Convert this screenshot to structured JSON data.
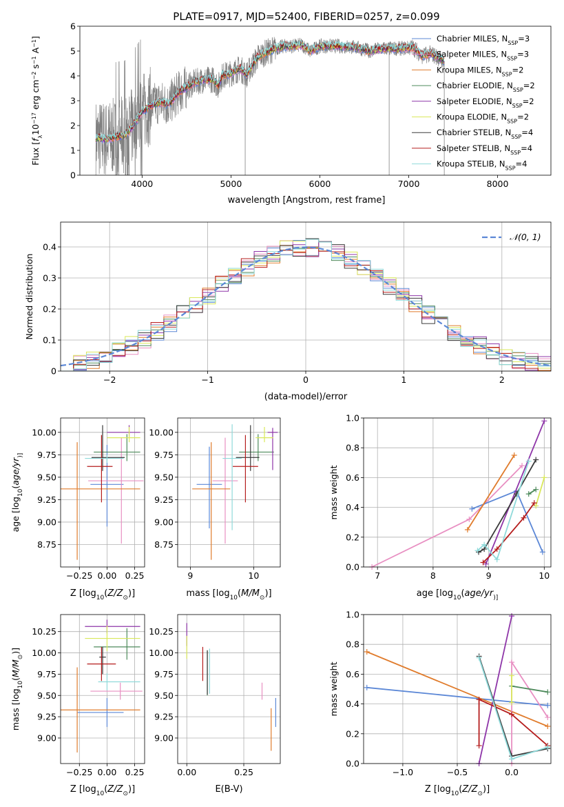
{
  "chart_data": [
    {
      "type": "line",
      "title": "PLATE=0917, MJD=52400, FIBERID=0257, z=0.099",
      "xlabel": "wavelength [Angstrom, rest frame]",
      "ylabel_parts": [
        "Flux [",
        "f",
        "λ",
        "10",
        "−17",
        " erg cm",
        "−2",
        " s",
        "−1",
        " A",
        "−1",
        "]"
      ],
      "xlim": [
        3300,
        8600
      ],
      "ylim": [
        0,
        6
      ],
      "xticks": [
        4000,
        5000,
        6000,
        7000,
        8000
      ],
      "yticks": [
        0,
        1,
        2,
        3,
        4,
        5,
        6
      ],
      "legend": "top-right",
      "data_color": "#808080",
      "models": [
        {
          "label": "Chabrier MILES, N",
          "sub": "SSP",
          "suffix": "=3",
          "color": "#5b87d6"
        },
        {
          "label": "Salpeter MILES, N",
          "sub": "SSP",
          "suffix": "=3",
          "color": "#e88fc2"
        },
        {
          "label": "Kroupa MILES, N",
          "sub": "SSP",
          "suffix": "=2",
          "color": "#e07b2b"
        },
        {
          "label": "Chabrier ELODIE, N",
          "sub": "SSP",
          "suffix": "=2",
          "color": "#4d8a5b"
        },
        {
          "label": "Salpeter ELODIE, N",
          "sub": "SSP",
          "suffix": "=2",
          "color": "#8e35a8"
        },
        {
          "label": "Kroupa ELODIE, N",
          "sub": "SSP",
          "suffix": "=2",
          "color": "#d9e85a"
        },
        {
          "label": "Chabrier STELIB, N",
          "sub": "SSP",
          "suffix": "=4",
          "color": "#3a3a3a"
        },
        {
          "label": "Salpeter STELIB, N",
          "sub": "SSP",
          "suffix": "=4",
          "color": "#b51c1c"
        },
        {
          "label": "Kroupa STELIB, N",
          "sub": "SSP",
          "suffix": "=4",
          "color": "#8fdada"
        }
      ],
      "continuum": [
        [
          3480,
          1.5
        ],
        [
          3600,
          1.45
        ],
        [
          3700,
          1.55
        ],
        [
          3800,
          1.6
        ],
        [
          3880,
          1.9
        ],
        [
          3950,
          2.3
        ],
        [
          4000,
          2.55
        ],
        [
          4100,
          2.8
        ],
        [
          4200,
          2.95
        ],
        [
          4300,
          2.85
        ],
        [
          4400,
          3.3
        ],
        [
          4500,
          3.55
        ],
        [
          4600,
          3.75
        ],
        [
          4700,
          3.85
        ],
        [
          4800,
          3.85
        ],
        [
          4860,
          3.6
        ],
        [
          4900,
          4.0
        ],
        [
          5000,
          4.1
        ],
        [
          5100,
          4.3
        ],
        [
          5175,
          4.05
        ],
        [
          5300,
          4.75
        ],
        [
          5400,
          4.95
        ],
        [
          5500,
          5.1
        ],
        [
          5600,
          5.2
        ],
        [
          5700,
          5.2
        ],
        [
          5800,
          5.25
        ],
        [
          5890,
          5.0
        ],
        [
          6000,
          5.2
        ],
        [
          6200,
          5.2
        ],
        [
          6400,
          5.15
        ],
        [
          6563,
          5.0
        ],
        [
          6700,
          5.1
        ],
        [
          6900,
          5.1
        ],
        [
          7050,
          5.15
        ],
        [
          7150,
          4.8
        ],
        [
          7250,
          4.9
        ],
        [
          7400,
          4.6
        ]
      ]
    },
    {
      "type": "histogram",
      "xlabel": "(data-model)/error",
      "ylabel": "Normed distribution",
      "xlim": [
        -2.5,
        2.5
      ],
      "ylim": [
        0,
        0.48
      ],
      "xticks": [
        -2,
        -1,
        0,
        1,
        2
      ],
      "yticks": [
        0.0,
        0.1,
        0.2,
        0.3,
        0.4
      ],
      "bins": 38,
      "reference_label": "𝒩(0, 1)",
      "reference_color": "#5b87d6",
      "legend": "top-right"
    },
    {
      "type": "scatter",
      "xlabel_parts": [
        "Z [log",
        "10",
        "(",
        "Z/Z",
        "⊙",
        ")]"
      ],
      "ylabel_parts": [
        "age  [log",
        "10",
        "(",
        "age/yr",
        ")]"
      ],
      "xlim": [
        -0.42,
        0.34
      ],
      "ylim": [
        8.5,
        10.16
      ],
      "xticks": [
        -0.25,
        0.0,
        0.25
      ],
      "xtick_labels": [
        "−0.25",
        "0.00",
        "0.25"
      ],
      "yticks": [
        8.75,
        9.0,
        9.25,
        9.5,
        9.75,
        10.0
      ],
      "points": [
        {
          "x": 0.0,
          "y": 9.42,
          "xerr": [
            0.15,
            0.15
          ],
          "yerr": [
            0.47,
            0.44
          ],
          "color": "#5b87d6"
        },
        {
          "x": 0.13,
          "y": 9.46,
          "xerr": [
            0.3,
            0.2
          ],
          "yerr": [
            0.7,
            0.48
          ],
          "color": "#e88fc2"
        },
        {
          "x": -0.27,
          "y": 9.37,
          "xerr": [
            0.15,
            0.57
          ],
          "yerr": [
            0.79,
            0.52
          ],
          "color": "#e07b2b"
        },
        {
          "x": 0.18,
          "y": 9.78,
          "xerr": [
            0.3,
            0.12
          ],
          "yerr": [
            0.1,
            0.2
          ],
          "color": "#4d8a5b"
        },
        {
          "x": 0.2,
          "y": 10.0,
          "xerr": [
            0.2,
            0.1
          ],
          "yerr": [
            0.05,
            0.08
          ],
          "color": "#8e35a8"
        },
        {
          "x": 0.2,
          "y": 9.94,
          "xerr": [
            0.2,
            0.1
          ],
          "yerr": [
            0.05,
            0.12
          ],
          "color": "#d9e85a"
        },
        {
          "x": -0.04,
          "y": 9.72,
          "xerr": [
            0.1,
            0.2
          ],
          "yerr": [
            0.15,
            0.36
          ],
          "color": "#3a3a3a"
        },
        {
          "x": -0.05,
          "y": 9.62,
          "xerr": [
            0.13,
            0.1
          ],
          "yerr": [
            0.4,
            0.35
          ],
          "color": "#b51c1c"
        },
        {
          "x": 0.0,
          "y": 9.71,
          "xerr": [
            0.2,
            0.15
          ],
          "yerr": [
            0.05,
            0.04
          ],
          "color": "#8fdada"
        }
      ]
    },
    {
      "type": "scatter",
      "xlabel_parts": [
        "mass [log",
        "10",
        "(",
        "M/M",
        "⊙",
        ")]"
      ],
      "xlim": [
        8.8,
        10.42
      ],
      "ylim": [
        8.5,
        10.16
      ],
      "xticks": [
        9,
        10
      ],
      "yticks": [
        8.75,
        9.0,
        9.25,
        9.5,
        9.75,
        10.0
      ],
      "points": [
        {
          "x": 9.3,
          "y": 9.42,
          "xerr": [
            0.2,
            0.2
          ],
          "yerr": [
            0.49,
            0.42
          ],
          "color": "#5b87d6"
        },
        {
          "x": 9.55,
          "y": 9.46,
          "xerr": [
            0.2,
            0.2
          ],
          "yerr": [
            0.7,
            0.48
          ],
          "color": "#e88fc2"
        },
        {
          "x": 9.33,
          "y": 9.37,
          "xerr": [
            0.3,
            0.3
          ],
          "yerr": [
            0.79,
            0.52
          ],
          "color": "#e07b2b"
        },
        {
          "x": 10.07,
          "y": 9.78,
          "xerr": [
            0.3,
            0.25
          ],
          "yerr": [
            0.1,
            0.2
          ],
          "color": "#4d8a5b"
        },
        {
          "x": 10.3,
          "y": 10.0,
          "xerr": [
            0.08,
            0.08
          ],
          "yerr": [
            0.42,
            0.05
          ],
          "color": "#8e35a8"
        },
        {
          "x": 10.17,
          "y": 9.94,
          "xerr": [
            0.14,
            0.14
          ],
          "yerr": [
            0.05,
            0.12
          ],
          "color": "#d9e85a"
        },
        {
          "x": 9.95,
          "y": 9.72,
          "xerr": [
            0.23,
            0.14
          ],
          "yerr": [
            0.15,
            0.36
          ],
          "color": "#3a3a3a"
        },
        {
          "x": 9.87,
          "y": 9.62,
          "xerr": [
            0.2,
            0.2
          ],
          "yerr": [
            0.4,
            0.35
          ],
          "color": "#b51c1c"
        },
        {
          "x": 9.66,
          "y": 9.71,
          "xerr": [
            0.15,
            0.15
          ],
          "yerr": [
            0.8,
            0.38
          ],
          "color": "#8fdada"
        }
      ]
    },
    {
      "type": "line",
      "xlabel_parts": [
        "age  [log",
        "10",
        "(",
        "age/yr",
        ")]"
      ],
      "ylabel": "mass weight",
      "xlim": [
        6.75,
        10.12
      ],
      "ylim": [
        0,
        1
      ],
      "xticks": [
        7,
        8,
        9,
        10
      ],
      "yticks": [
        0.0,
        0.2,
        0.4,
        0.6,
        0.8,
        1.0
      ],
      "series": [
        {
          "color": "#e88fc2",
          "x": [
            6.9,
            8.65,
            9.6
          ],
          "y": [
            0.0,
            0.32,
            0.68
          ]
        },
        {
          "color": "#5b87d6",
          "x": [
            8.7,
            9.5,
            9.97
          ],
          "y": [
            0.39,
            0.51,
            0.1
          ]
        },
        {
          "color": "#e07b2b",
          "x": [
            8.62,
            9.46
          ],
          "y": [
            0.25,
            0.75
          ]
        },
        {
          "color": "#4d8a5b",
          "x": [
            9.72,
            9.85
          ],
          "y": [
            0.49,
            0.52
          ]
        },
        {
          "color": "#8e35a8",
          "x": [
            8.95,
            10.0
          ],
          "y": [
            0.02,
            0.98
          ]
        },
        {
          "color": "#d9e85a",
          "x": [
            9.85,
            10.0
          ],
          "y": [
            0.41,
            0.6
          ]
        },
        {
          "color": "#3a3a3a",
          "x": [
            8.82,
            8.92,
            9.5,
            9.85
          ],
          "y": [
            0.1,
            0.12,
            0.49,
            0.72
          ]
        },
        {
          "color": "#b51c1c",
          "x": [
            8.9,
            9.15,
            9.63,
            9.82
          ],
          "y": [
            0.03,
            0.12,
            0.33,
            0.43
          ]
        },
        {
          "color": "#8fdada",
          "x": [
            8.8,
            8.92,
            9.15,
            9.72
          ],
          "y": [
            0.11,
            0.15,
            0.05,
            0.71
          ]
        }
      ]
    },
    {
      "type": "scatter",
      "xlabel_parts": [
        "Z [log",
        "10",
        "(",
        "Z/Z",
        "⊙",
        ")]"
      ],
      "ylabel_parts": [
        "mass [log",
        "10",
        "(",
        "M/M",
        "⊙",
        ")]"
      ],
      "xlim": [
        -0.42,
        0.34
      ],
      "ylim": [
        8.7,
        10.45
      ],
      "xticks": [
        -0.25,
        0.0,
        0.25
      ],
      "xtick_labels": [
        "−0.25",
        "0.00",
        "0.25"
      ],
      "yticks": [
        9.0,
        9.25,
        9.5,
        9.75,
        10.0,
        10.25
      ],
      "points": [
        {
          "x": 0.0,
          "y": 9.3,
          "xerr": [
            0.27,
            0.15
          ],
          "yerr": [
            0.17,
            0.17
          ],
          "color": "#5b87d6"
        },
        {
          "x": 0.12,
          "y": 9.55,
          "xerr": [
            0.27,
            0.2
          ],
          "yerr": [
            0.1,
            0.1
          ],
          "color": "#e88fc2"
        },
        {
          "x": -0.27,
          "y": 9.33,
          "xerr": [
            0.15,
            0.57
          ],
          "yerr": [
            0.5,
            0.5
          ],
          "color": "#e07b2b"
        },
        {
          "x": 0.18,
          "y": 10.07,
          "xerr": [
            0.3,
            0.12
          ],
          "yerr": [
            0.15,
            0.22
          ],
          "color": "#4d8a5b"
        },
        {
          "x": 0.0,
          "y": 10.31,
          "xerr": [
            0.2,
            0.3
          ],
          "yerr": [
            0.08,
            0.08
          ],
          "color": "#8e35a8"
        },
        {
          "x": 0.0,
          "y": 10.17,
          "xerr": [
            0.2,
            0.3
          ],
          "yerr": [
            0.15,
            0.15
          ],
          "color": "#d9e85a"
        },
        {
          "x": -0.04,
          "y": 9.95,
          "xerr": [
            0.03,
            0.03
          ],
          "yerr": [
            0.2,
            0.12
          ],
          "color": "#3a3a3a"
        },
        {
          "x": -0.05,
          "y": 9.87,
          "xerr": [
            0.13,
            0.13
          ],
          "yerr": [
            0.2,
            0.2
          ],
          "color": "#b51c1c"
        },
        {
          "x": 0.0,
          "y": 9.66,
          "xerr": [
            0.08,
            0.3
          ],
          "yerr": [
            0.1,
            0.1
          ],
          "color": "#8fdada"
        }
      ]
    },
    {
      "type": "scatter",
      "xlabel": "E(B-V)",
      "xlim": [
        -0.04,
        0.41
      ],
      "ylim": [
        8.7,
        10.45
      ],
      "xticks": [
        0.0,
        0.25
      ],
      "xtick_labels": [
        "0.00",
        "0.25"
      ],
      "yticks": [
        9.0,
        9.25,
        9.5,
        9.75,
        10.0,
        10.25
      ],
      "points": [
        {
          "x": 0.39,
          "y": 9.3,
          "yerr": [
            0.17,
            0.17
          ],
          "color": "#5b87d6"
        },
        {
          "x": 0.33,
          "y": 9.55,
          "yerr": [
            0.1,
            0.1
          ],
          "color": "#e88fc2"
        },
        {
          "x": 0.37,
          "y": 9.1,
          "yerr": [
            0.25,
            0.25
          ],
          "color": "#e07b2b"
        },
        {
          "x": 0.09,
          "y": 9.78,
          "yerr": [
            0.28,
            0.25
          ],
          "color": "#4d8a5b"
        },
        {
          "x": 0.0,
          "y": 10.2,
          "yerr": [
            0.12,
            0.15
          ],
          "color": "#8e35a8"
        },
        {
          "x": 0.0,
          "y": 10.08,
          "yerr": [
            0.15,
            0.12
          ],
          "color": "#d9e85a"
        },
        {
          "x": 0.09,
          "y": 9.78,
          "yerr": [
            0.27,
            0.25
          ],
          "color": "#3a3a3a"
        },
        {
          "x": 0.07,
          "y": 9.87,
          "yerr": [
            0.2,
            0.2
          ],
          "color": "#b51c1c"
        },
        {
          "x": 0.1,
          "y": 9.8,
          "yerr": [
            0.28,
            0.25
          ],
          "color": "#8fdada"
        }
      ]
    },
    {
      "type": "line",
      "xlabel_parts": [
        "Z [log",
        "10",
        "(",
        "Z/Z",
        "⊙",
        ")]"
      ],
      "ylabel": "mass weight",
      "xlim": [
        -1.36,
        0.36
      ],
      "ylim": [
        0,
        1
      ],
      "xticks": [
        -1.0,
        -0.5,
        0.0
      ],
      "xtick_labels": [
        "−1.0",
        "−0.5",
        "0.0"
      ],
      "yticks": [
        0.0,
        0.2,
        0.4,
        0.6,
        0.8,
        1.0
      ],
      "series": [
        {
          "color": "#5b87d6",
          "x": [
            -1.33,
            0.33
          ],
          "y": [
            0.51,
            0.39
          ]
        },
        {
          "color": "#e07b2b",
          "x": [
            -1.33,
            0.33
          ],
          "y": [
            0.75,
            0.25
          ]
        },
        {
          "color": "#e88fc2",
          "x": [
            0.0,
            0.0,
            0.33
          ],
          "y": [
            0.0,
            0.68,
            0.31
          ]
        },
        {
          "color": "#4d8a5b",
          "x": [
            0.0,
            0.33
          ],
          "y": [
            0.52,
            0.48
          ]
        },
        {
          "color": "#8e35a8",
          "x": [
            -0.3,
            0.0
          ],
          "y": [
            0.0,
            0.99
          ]
        },
        {
          "color": "#d9e85a",
          "x": [
            0.0,
            0.0
          ],
          "y": [
            0.41,
            0.59
          ]
        },
        {
          "color": "#3a3a3a",
          "x": [
            -0.3,
            0.0,
            0.33
          ],
          "y": [
            0.72,
            0.05,
            0.1
          ]
        },
        {
          "color": "#b51c1c",
          "x": [
            -0.3,
            -0.3,
            0.0,
            0.33
          ],
          "y": [
            0.12,
            0.43,
            0.33,
            0.12
          ]
        },
        {
          "color": "#8fdada",
          "x": [
            -0.3,
            0.0,
            0.33
          ],
          "y": [
            0.71,
            0.03,
            0.11
          ]
        }
      ]
    }
  ]
}
